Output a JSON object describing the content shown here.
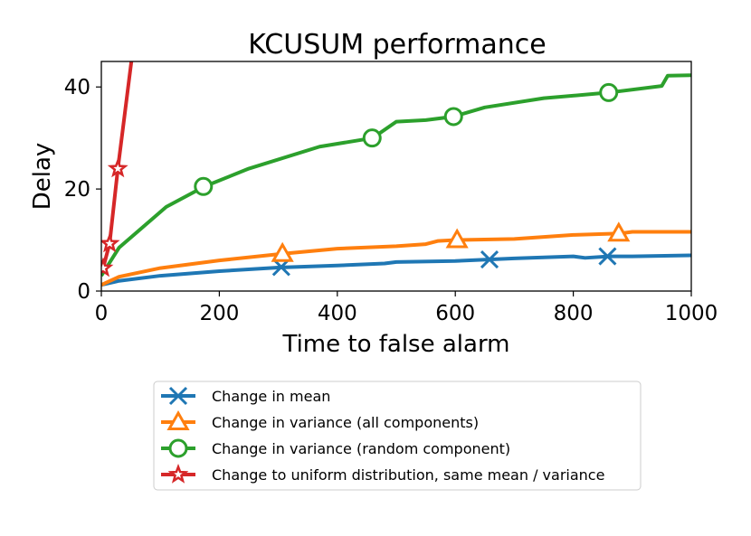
{
  "chart_data": {
    "type": "line",
    "title": "KCUSUM performance",
    "xlabel": "Time to false alarm",
    "ylabel": "Delay",
    "xlim": [
      0,
      1000
    ],
    "ylim": [
      0,
      45
    ],
    "xticks": [
      0,
      200,
      400,
      600,
      800,
      1000
    ],
    "yticks": [
      0,
      20,
      40
    ],
    "grid": false,
    "legend_position": "below plot",
    "series": [
      {
        "name": "Change in mean",
        "color": "#1f77b4",
        "marker": "x",
        "x": [
          0,
          30,
          100,
          200,
          300,
          400,
          480,
          500,
          600,
          660,
          700,
          800,
          820,
          860,
          900,
          1000
        ],
        "y": [
          1.2,
          2.0,
          3.0,
          3.9,
          4.6,
          5.0,
          5.4,
          5.7,
          5.9,
          6.2,
          6.4,
          6.8,
          6.5,
          6.8,
          6.8,
          7.0
        ],
        "markers_x": [
          305,
          658,
          858
        ],
        "markers_y": [
          4.7,
          6.2,
          6.8
        ]
      },
      {
        "name": "Change in variance (all components)",
        "color": "#ff7f0e",
        "marker": "triangle",
        "x": [
          0,
          30,
          100,
          200,
          307,
          400,
          500,
          550,
          570,
          600,
          700,
          800,
          880,
          900,
          1000
        ],
        "y": [
          1.2,
          2.8,
          4.5,
          6.0,
          7.3,
          8.3,
          8.8,
          9.2,
          9.8,
          10.0,
          10.2,
          11.0,
          11.3,
          11.6,
          11.6
        ],
        "markers_x": [
          307,
          603,
          877
        ],
        "markers_y": [
          7.3,
          10.0,
          11.3
        ]
      },
      {
        "name": "Change in variance (random component)",
        "color": "#2ca02c",
        "marker": "circle",
        "x": [
          0,
          30,
          110,
          175,
          250,
          370,
          460,
          500,
          550,
          597,
          650,
          750,
          860,
          950,
          960,
          1000
        ],
        "y": [
          3.0,
          8.5,
          16.5,
          20.5,
          24.0,
          28.3,
          30.0,
          33.2,
          33.5,
          34.2,
          36.0,
          37.8,
          38.9,
          40.2,
          42.2,
          42.3
        ],
        "markers_x": [
          173,
          459,
          597,
          860
        ],
        "markers_y": [
          20.5,
          30.0,
          34.2,
          38.9
        ]
      },
      {
        "name": "Change to uniform distribution, same mean / variance",
        "color": "#d62728",
        "marker": "star",
        "x": [
          3,
          14,
          28,
          52
        ],
        "y": [
          4.5,
          9.3,
          24.0,
          46.0
        ],
        "markers_x": [
          3,
          14,
          28
        ],
        "markers_y": [
          4.5,
          9.3,
          24.0
        ]
      }
    ]
  }
}
